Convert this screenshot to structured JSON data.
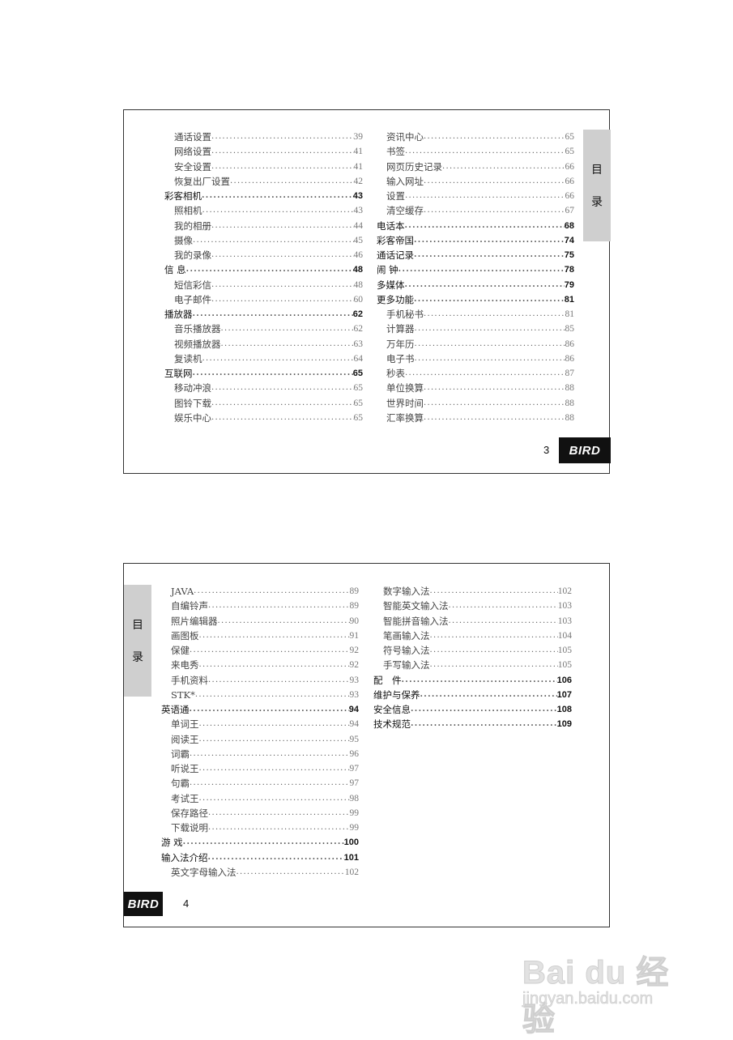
{
  "pages": [
    {
      "number": "3",
      "tab": [
        "目",
        "录"
      ],
      "logo": "BIRD",
      "columns": [
        [
          {
            "label": "通话设置",
            "page": "39",
            "level": "sub"
          },
          {
            "label": "网络设置",
            "page": "41",
            "level": "sub"
          },
          {
            "label": "安全设置",
            "page": "41",
            "level": "sub"
          },
          {
            "label": "恢复出厂设置",
            "page": "42",
            "level": "sub"
          },
          {
            "label": "彩客相机",
            "page": "43",
            "level": "main"
          },
          {
            "label": "照相机",
            "page": "43",
            "level": "sub"
          },
          {
            "label": "我的相册",
            "page": "44",
            "level": "sub"
          },
          {
            "label": "摄像",
            "page": "45",
            "level": "sub"
          },
          {
            "label": "我的录像",
            "page": "46",
            "level": "sub"
          },
          {
            "label": "信 息",
            "page": "48",
            "level": "main"
          },
          {
            "label": "短信彩信",
            "page": "48",
            "level": "sub"
          },
          {
            "label": "电子邮件",
            "page": "60",
            "level": "sub"
          },
          {
            "label": "播放器",
            "page": "62",
            "level": "main"
          },
          {
            "label": "音乐播放器",
            "page": "62",
            "level": "sub"
          },
          {
            "label": "视频播放器",
            "page": "63",
            "level": "sub"
          },
          {
            "label": "复读机",
            "page": "64",
            "level": "sub"
          },
          {
            "label": "互联网",
            "page": "65",
            "level": "main"
          },
          {
            "label": "移动冲浪",
            "page": "65",
            "level": "sub"
          },
          {
            "label": "图铃下载",
            "page": "65",
            "level": "sub"
          },
          {
            "label": "娱乐中心",
            "page": "65",
            "level": "sub"
          }
        ],
        [
          {
            "label": "资讯中心",
            "page": "65",
            "level": "sub"
          },
          {
            "label": "书签",
            "page": "65",
            "level": "sub"
          },
          {
            "label": "网页历史记录",
            "page": "66",
            "level": "sub"
          },
          {
            "label": "输入网址",
            "page": "66",
            "level": "sub"
          },
          {
            "label": "设置",
            "page": "66",
            "level": "sub"
          },
          {
            "label": "清空缓存",
            "page": "67",
            "level": "sub"
          },
          {
            "label": "电话本",
            "page": "68",
            "level": "main"
          },
          {
            "label": "彩客帝国",
            "page": "74",
            "level": "main"
          },
          {
            "label": "通话记录",
            "page": "75",
            "level": "main"
          },
          {
            "label": "闹 钟",
            "page": "78",
            "level": "main"
          },
          {
            "label": "多媒体",
            "page": "79",
            "level": "main"
          },
          {
            "label": "更多功能",
            "page": "81",
            "level": "main"
          },
          {
            "label": "手机秘书",
            "page": "81",
            "level": "sub"
          },
          {
            "label": "计算器",
            "page": "85",
            "level": "sub"
          },
          {
            "label": "万年历",
            "page": "86",
            "level": "sub"
          },
          {
            "label": "电子书",
            "page": "86",
            "level": "sub"
          },
          {
            "label": "秒表",
            "page": "87",
            "level": "sub"
          },
          {
            "label": "单位换算",
            "page": "88",
            "level": "sub"
          },
          {
            "label": "世界时间",
            "page": "88",
            "level": "sub"
          },
          {
            "label": "汇率换算",
            "page": "88",
            "level": "sub"
          }
        ]
      ]
    },
    {
      "number": "4",
      "tab": [
        "目",
        "录"
      ],
      "logo": "BIRD",
      "columns": [
        [
          {
            "label": "JAVA",
            "page": "89",
            "level": "sub"
          },
          {
            "label": "自编铃声",
            "page": "89",
            "level": "sub"
          },
          {
            "label": "照片编辑器",
            "page": "90",
            "level": "sub"
          },
          {
            "label": "画图板",
            "page": "91",
            "level": "sub"
          },
          {
            "label": "保健",
            "page": "92",
            "level": "sub"
          },
          {
            "label": "来电秀",
            "page": "92",
            "level": "sub"
          },
          {
            "label": "手机资料",
            "page": "93",
            "level": "sub"
          },
          {
            "label": "STK*",
            "page": "93",
            "level": "sub"
          },
          {
            "label": "英语通",
            "page": "94",
            "level": "main"
          },
          {
            "label": "单词王",
            "page": "94",
            "level": "sub"
          },
          {
            "label": "阅读王",
            "page": "95",
            "level": "sub"
          },
          {
            "label": "词霸",
            "page": "96",
            "level": "sub"
          },
          {
            "label": "听说王",
            "page": "97",
            "level": "sub"
          },
          {
            "label": "句霸",
            "page": "97",
            "level": "sub"
          },
          {
            "label": "考试王",
            "page": "98",
            "level": "sub"
          },
          {
            "label": "保存路径",
            "page": "99",
            "level": "sub"
          },
          {
            "label": "下载说明",
            "page": "99",
            "level": "sub"
          },
          {
            "label": "游 戏",
            "page": "100",
            "level": "main"
          },
          {
            "label": "输入法介绍",
            "page": "101",
            "level": "main"
          },
          {
            "label": "英文字母输入法",
            "page": "102",
            "level": "sub"
          }
        ],
        [
          {
            "label": "数字输入法",
            "page": "102",
            "level": "sub"
          },
          {
            "label": "智能英文输入法",
            "page": "103",
            "level": "sub"
          },
          {
            "label": "智能拼音输入法",
            "page": "103",
            "level": "sub"
          },
          {
            "label": "笔画输入法",
            "page": "104",
            "level": "sub"
          },
          {
            "label": "符号输入法",
            "page": "105",
            "level": "sub"
          },
          {
            "label": "手写输入法",
            "page": "105",
            "level": "sub"
          },
          {
            "label": "配　件",
            "page": "106",
            "level": "main"
          },
          {
            "label": "维护与保养",
            "page": "107",
            "level": "main"
          },
          {
            "label": "安全信息",
            "page": "108",
            "level": "main"
          },
          {
            "label": "技术规范",
            "page": "109",
            "level": "main"
          }
        ]
      ]
    }
  ],
  "watermark": {
    "brand": "Bai du 经验",
    "url": "jingyan.baidu.com"
  }
}
